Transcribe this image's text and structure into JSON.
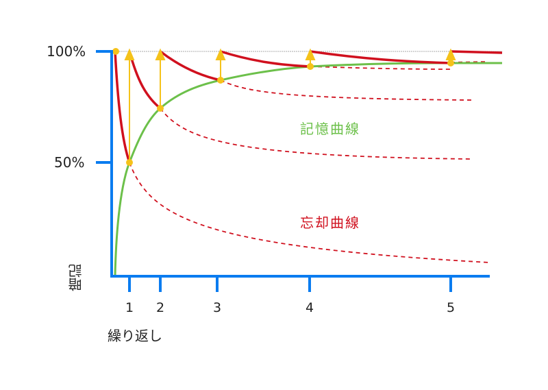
{
  "y_axis": {
    "label": "暗記",
    "ticks": [
      "100%",
      "50%"
    ]
  },
  "x_axis": {
    "label": "繰り返し",
    "ticks": [
      "1",
      "2",
      "3",
      "4",
      "5"
    ]
  },
  "curves": {
    "memory": "記憶曲線",
    "forgetting": "忘却曲線"
  },
  "colors": {
    "axis": "#0a7cf0",
    "memory": "#6cc04a",
    "forgetting": "#d0101e",
    "arrow": "#f5c21a",
    "guide": "#aaaaaa"
  }
}
